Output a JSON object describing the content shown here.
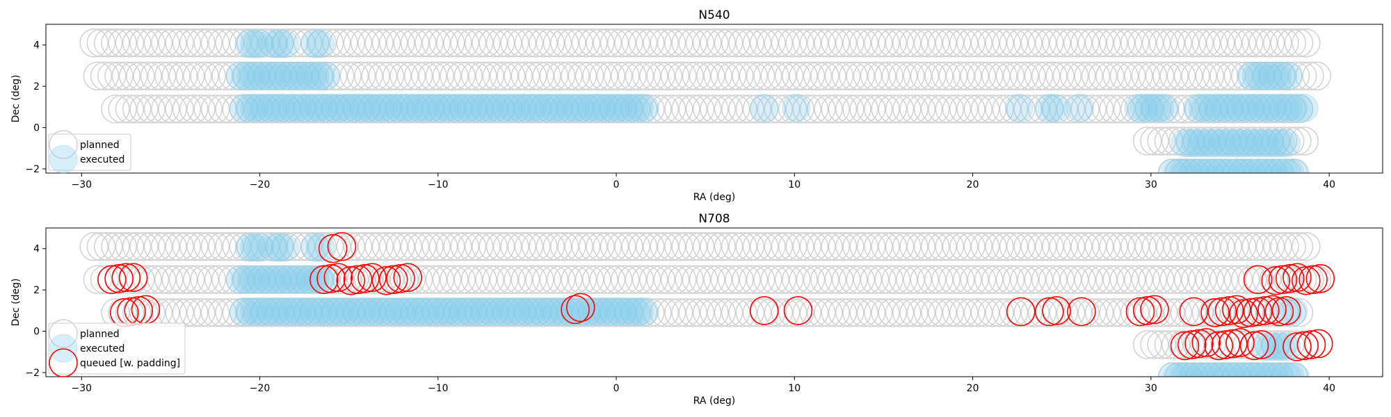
{
  "chart_data": [
    {
      "type": "scatter",
      "title": "N540",
      "xlabel": "RA (deg)",
      "ylabel": "Dec (deg)",
      "xlim": [
        -32,
        43
      ],
      "ylim": [
        -2.2,
        5.0
      ],
      "xticks": [
        -30,
        -20,
        -10,
        0,
        10,
        20,
        30,
        40
      ],
      "xtick_labels": [
        "−30",
        "−20",
        "−10",
        "0",
        "10",
        "20",
        "30",
        "40"
      ],
      "yticks": [
        -2,
        0,
        2,
        4
      ],
      "ytick_labels": [
        "−2",
        "0",
        "2",
        "4"
      ],
      "legend": {
        "placement": "lower-left",
        "entries": [
          "planned",
          "executed"
        ]
      },
      "series": [
        {
          "name": "planned",
          "style": "gray-outline",
          "rows": [
            {
              "dec": 4.1,
              "ra_start": -29.3,
              "ra_end": 38.7,
              "step": 0.4
            },
            {
              "dec": 2.5,
              "ra_start": -29.1,
              "ra_end": 39.4,
              "step": 0.4
            },
            {
              "dec": 0.9,
              "ra_start": -28.1,
              "ra_end": 38.4,
              "step": 0.4
            },
            {
              "dec": -0.65,
              "ra_start": 29.8,
              "ra_end": 38.6,
              "step": 0.4
            },
            {
              "dec": -2.2,
              "ra_start": 31.2,
              "ra_end": 38.3,
              "step": 0.4
            }
          ]
        },
        {
          "name": "executed",
          "style": "blue-fill",
          "rows": [
            {
              "dec": 4.05,
              "ranges": [
                [
                  -20.6,
                  -20.0
                ],
                [
                  -19.2,
                  -18.6
                ],
                [
                  -16.9,
                  -16.5
                ]
              ],
              "step": 0.3
            },
            {
              "dec": 2.5,
              "ranges": [
                [
                  -21.1,
                  -16.3
                ]
              ],
              "step": 0.3
            },
            {
              "dec": 0.95,
              "ranges": [
                [
                  -20.9,
                  1.7
                ],
                [
                  8.3,
                  8.4
                ],
                [
                  10.1,
                  10.2
                ],
                [
                  22.6,
                  22.7
                ],
                [
                  24.3,
                  24.7
                ],
                [
                  26.0,
                  26.1
                ],
                [
                  29.3,
                  30.8
                ],
                [
                  32.6,
                  38.6
                ]
              ],
              "step": 0.3
            },
            {
              "dec": 2.5,
              "ranges": [
                [
                  35.6,
                  37.9
                ]
              ],
              "step": 0.3
            },
            {
              "dec": -0.75,
              "ranges": [
                [
                  31.9,
                  37.8
                ]
              ],
              "step": 0.3
            },
            {
              "dec": -2.2,
              "ranges": [
                [
                  31.2,
                  38.3
                ]
              ],
              "step": 0.3
            }
          ]
        }
      ]
    },
    {
      "type": "scatter",
      "title": "N708",
      "xlabel": "RA (deg)",
      "ylabel": "Dec (deg)",
      "xlim": [
        -32,
        43
      ],
      "ylim": [
        -2.2,
        5.0
      ],
      "xticks": [
        -30,
        -20,
        -10,
        0,
        10,
        20,
        30,
        40
      ],
      "xtick_labels": [
        "−30",
        "−20",
        "−10",
        "0",
        "10",
        "20",
        "30",
        "40"
      ],
      "yticks": [
        -2,
        0,
        2,
        4
      ],
      "ytick_labels": [
        "−2",
        "0",
        "2",
        "4"
      ],
      "legend": {
        "placement": "lower-left",
        "entries": [
          "planned",
          "executed",
          "queued [w. padding]"
        ]
      },
      "series": [
        {
          "name": "planned",
          "style": "gray-outline",
          "rows": [
            {
              "dec": 4.1,
              "ra_start": -29.3,
              "ra_end": 38.7,
              "step": 0.4
            },
            {
              "dec": 2.5,
              "ra_start": -29.1,
              "ra_end": 39.4,
              "step": 0.4
            },
            {
              "dec": 0.9,
              "ra_start": -28.1,
              "ra_end": 38.4,
              "step": 0.4
            },
            {
              "dec": -0.65,
              "ra_start": 29.8,
              "ra_end": 38.6,
              "step": 0.4
            },
            {
              "dec": -2.2,
              "ra_start": 31.2,
              "ra_end": 38.3,
              "step": 0.4
            }
          ]
        },
        {
          "name": "executed",
          "style": "blue-fill",
          "rows": [
            {
              "dec": 4.05,
              "ranges": [
                [
                  -20.6,
                  -20.0
                ],
                [
                  -19.2,
                  -18.6
                ],
                [
                  -16.9,
                  -16.5
                ]
              ],
              "step": 0.3
            },
            {
              "dec": 2.5,
              "ranges": [
                [
                  -21.1,
                  -16.3
                ]
              ],
              "step": 0.3
            },
            {
              "dec": 0.95,
              "ranges": [
                [
                  -20.9,
                  1.7
                ],
                [
                  37.7,
                  38.0
                ]
              ],
              "step": 0.3
            },
            {
              "dec": -0.75,
              "ranges": [
                [
                  36.4,
                  37.8
                ]
              ],
              "step": 0.3
            },
            {
              "dec": -2.2,
              "ranges": [
                [
                  31.2,
                  38.3
                ]
              ],
              "step": 0.3
            }
          ]
        },
        {
          "name": "queued [w. padding]",
          "style": "red-outline",
          "points": [
            [
              -15.9,
              4.0
            ],
            [
              -15.4,
              4.1
            ],
            [
              -28.3,
              2.5
            ],
            [
              -27.9,
              2.55
            ],
            [
              -27.5,
              2.6
            ],
            [
              -27.1,
              2.6
            ],
            [
              -16.4,
              2.5
            ],
            [
              -16.0,
              2.55
            ],
            [
              -15.6,
              2.6
            ],
            [
              -14.9,
              2.45
            ],
            [
              -14.5,
              2.5
            ],
            [
              -14.1,
              2.55
            ],
            [
              -13.7,
              2.6
            ],
            [
              -12.9,
              2.45
            ],
            [
              -12.5,
              2.5
            ],
            [
              -12.1,
              2.55
            ],
            [
              -11.7,
              2.6
            ],
            [
              -27.6,
              0.9
            ],
            [
              -27.2,
              0.95
            ],
            [
              -26.8,
              1.0
            ],
            [
              -26.4,
              1.05
            ],
            [
              -2.3,
              1.05
            ],
            [
              -2.0,
              1.15
            ],
            [
              8.3,
              1.0
            ],
            [
              10.2,
              1.0
            ],
            [
              22.7,
              0.95
            ],
            [
              24.3,
              0.95
            ],
            [
              24.7,
              1.0
            ],
            [
              26.1,
              0.95
            ],
            [
              29.4,
              0.95
            ],
            [
              29.8,
              1.0
            ],
            [
              30.2,
              1.05
            ],
            [
              32.4,
              0.95
            ],
            [
              33.6,
              0.9
            ],
            [
              34.0,
              0.95
            ],
            [
              34.4,
              1.0
            ],
            [
              34.8,
              1.05
            ],
            [
              35.2,
              0.85
            ],
            [
              35.6,
              0.9
            ],
            [
              36.0,
              0.95
            ],
            [
              36.4,
              1.0
            ],
            [
              36.8,
              1.05
            ],
            [
              37.2,
              0.95
            ],
            [
              37.6,
              1.0
            ],
            [
              36.0,
              2.5
            ],
            [
              37.0,
              2.45
            ],
            [
              37.4,
              2.5
            ],
            [
              37.8,
              2.55
            ],
            [
              38.2,
              2.6
            ],
            [
              38.7,
              2.45
            ],
            [
              39.1,
              2.5
            ],
            [
              39.5,
              2.55
            ],
            [
              31.9,
              -0.7
            ],
            [
              32.3,
              -0.65
            ],
            [
              32.7,
              -0.6
            ],
            [
              33.1,
              -0.55
            ],
            [
              33.8,
              -0.7
            ],
            [
              34.2,
              -0.65
            ],
            [
              34.6,
              -0.6
            ],
            [
              35.0,
              -0.55
            ],
            [
              35.8,
              -0.7
            ],
            [
              36.2,
              -0.65
            ],
            [
              38.2,
              -0.75
            ],
            [
              38.6,
              -0.7
            ],
            [
              39.0,
              -0.65
            ],
            [
              39.4,
              -0.6
            ]
          ]
        }
      ]
    }
  ]
}
